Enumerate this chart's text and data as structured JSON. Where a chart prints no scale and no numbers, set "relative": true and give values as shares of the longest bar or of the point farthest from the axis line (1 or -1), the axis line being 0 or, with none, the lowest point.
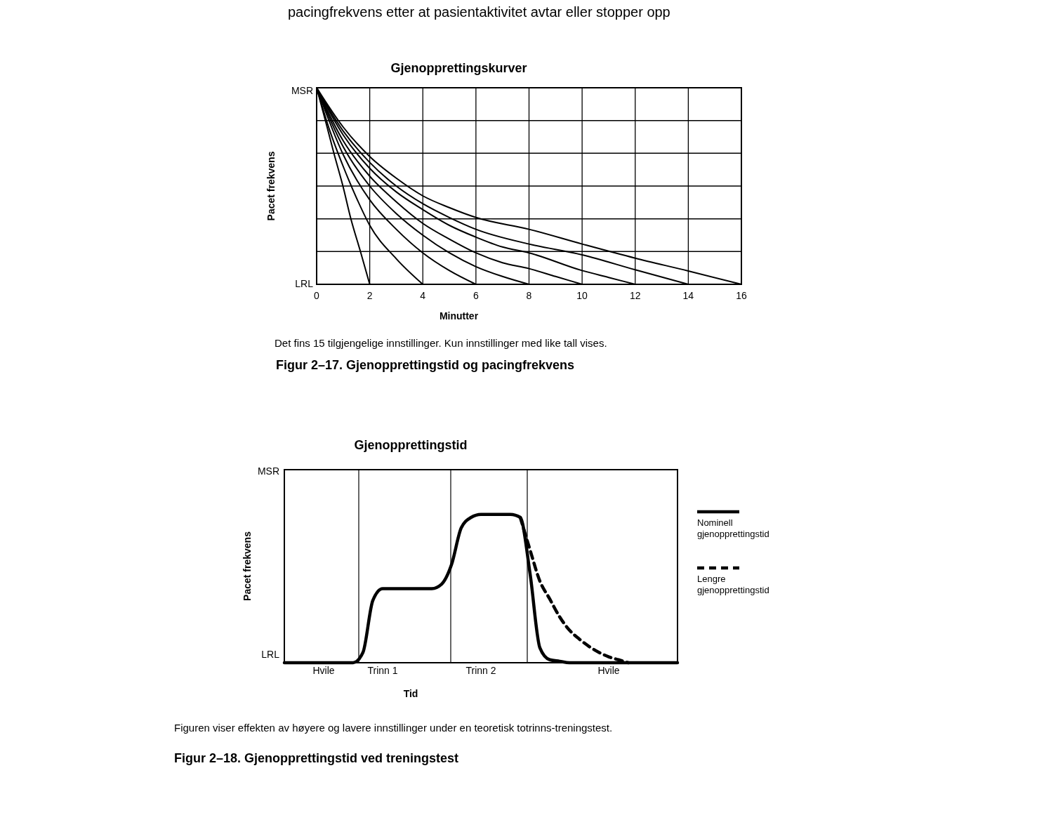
{
  "chart_data": [
    {
      "type": "line",
      "title": "Gjenopprettingskurver",
      "xlabel": "Minutter",
      "ylabel": "Pacet frekvens",
      "relative": true,
      "tick_labels": "x",
      "annotations": [
        "pacingfrekvens etter at pasientaktivitet avtar eller stopper opp",
        "MSR",
        "LRL",
        "Det fins 15 tilgjengelige innstillinger. Kun innstillinger med like tall vises.",
        "Figur 2–17.   Gjenopprettingstid og pacingfrekvens"
      ],
      "xlim": [
        0,
        16
      ],
      "xticks": [
        0,
        2,
        4,
        6,
        8,
        10,
        12,
        14,
        16
      ],
      "grid": "x",
      "legend": false,
      "line_style": "solid",
      "marker": "none",
      "ref_lines": [
        {
          "axis": "y",
          "value": 0.167
        },
        {
          "axis": "y",
          "value": 0.333
        },
        {
          "axis": "y",
          "value": 0.5
        },
        {
          "axis": "y",
          "value": 0.667
        },
        {
          "axis": "y",
          "value": 0.833
        }
      ],
      "series": [
        {
          "color": "#000000",
          "x": [
            0,
            0.33,
            0.65,
            0.99,
            1.29,
            1.65,
            2
          ],
          "values": [
            1,
            0.833,
            0.667,
            0.5,
            0.333,
            0.167,
            0
          ]
        },
        {
          "color": "#000000",
          "x": [
            0,
            0.5,
            1,
            1.5,
            2,
            3,
            4
          ],
          "values": [
            1,
            0.78,
            0.6,
            0.44,
            0.3,
            0.13,
            0
          ]
        },
        {
          "color": "#000000",
          "x": [
            0,
            1,
            2,
            3,
            4,
            5,
            6
          ],
          "values": [
            1,
            0.66,
            0.43,
            0.28,
            0.16,
            0.07,
            0
          ]
        },
        {
          "color": "#000000",
          "x": [
            0,
            1,
            2,
            3,
            4,
            5,
            6,
            7,
            8
          ],
          "values": [
            1,
            0.7,
            0.5,
            0.36,
            0.25,
            0.16,
            0.09,
            0.04,
            0
          ]
        },
        {
          "color": "#000000",
          "x": [
            0,
            1,
            2,
            3,
            4,
            5,
            6,
            7,
            8,
            9,
            10
          ],
          "values": [
            1,
            0.73,
            0.55,
            0.42,
            0.31,
            0.23,
            0.16,
            0.11,
            0.08,
            0.04,
            0
          ]
        },
        {
          "color": "#000000",
          "x": [
            0,
            1,
            2,
            3,
            4,
            5,
            6,
            7,
            8,
            10,
            11,
            12
          ],
          "values": [
            1,
            0.76,
            0.59,
            0.47,
            0.38,
            0.3,
            0.24,
            0.19,
            0.16,
            0.07,
            0.035,
            0
          ]
        },
        {
          "color": "#000000",
          "x": [
            0,
            1,
            2,
            3,
            4,
            5,
            6,
            8,
            10,
            12,
            14
          ],
          "values": [
            1,
            0.78,
            0.62,
            0.5,
            0.41,
            0.34,
            0.28,
            0.205,
            0.15,
            0.074,
            0
          ]
        },
        {
          "color": "#000000",
          "x": [
            0,
            1,
            2,
            3,
            4,
            5,
            6,
            8,
            10,
            12,
            14,
            16
          ],
          "values": [
            1,
            0.8,
            0.65,
            0.54,
            0.45,
            0.39,
            0.34,
            0.28,
            0.205,
            0.133,
            0.068,
            0
          ]
        }
      ]
    },
    {
      "type": "line",
      "title": "Gjenopprettingstid",
      "xlabel": "Tid",
      "ylabel": "Pacet frekvens",
      "relative": true,
      "annotations": [
        "MSR",
        "LRL",
        "Figuren viser effekten av høyere og lavere innstillinger under en teoretisk totrinns-treningstest.",
        "Figur 2–18.   Gjenopprettingstid ved treningstest"
      ],
      "categories": [
        null,
        null,
        null,
        null,
        "Hvile",
        null,
        null,
        null,
        null,
        null,
        "Trinn 1",
        null,
        null,
        null,
        null,
        null,
        null,
        null,
        null,
        null,
        "Trinn 2",
        null,
        null,
        null,
        null,
        null,
        null,
        null,
        null,
        null,
        null,
        null,
        null,
        "Hvile",
        null,
        null,
        null,
        null,
        null,
        null,
        null
      ],
      "legend": "right",
      "marker": "none",
      "series": [
        {
          "name": "Nominell gjenopprettingstid",
          "color": "#000000",
          "line_style": "solid",
          "values": [
            0,
            0,
            0,
            0,
            0,
            0,
            0,
            0,
            0.07,
            0.42,
            0.5,
            0.5,
            0.5,
            0.5,
            0.5,
            0.5,
            0.53,
            0.66,
            0.91,
            0.98,
            1,
            1,
            1,
            1,
            0.98,
            0.6,
            0.1,
            0.02,
            0.01,
            0,
            0,
            0,
            0,
            0,
            0,
            0,
            0,
            0,
            0,
            0,
            0
          ]
        },
        {
          "name": "Lengre gjenopprettingstid",
          "color": "#000000",
          "line_style": "dashed",
          "values": [
            null,
            null,
            null,
            null,
            null,
            null,
            null,
            null,
            null,
            null,
            null,
            null,
            null,
            null,
            null,
            null,
            null,
            null,
            null,
            null,
            null,
            null,
            null,
            null,
            0.98,
            0.76,
            0.55,
            0.43,
            0.31,
            0.22,
            0.16,
            0.11,
            0.07,
            0.04,
            0.02,
            0,
            null,
            null,
            null,
            null,
            null
          ]
        }
      ]
    }
  ]
}
